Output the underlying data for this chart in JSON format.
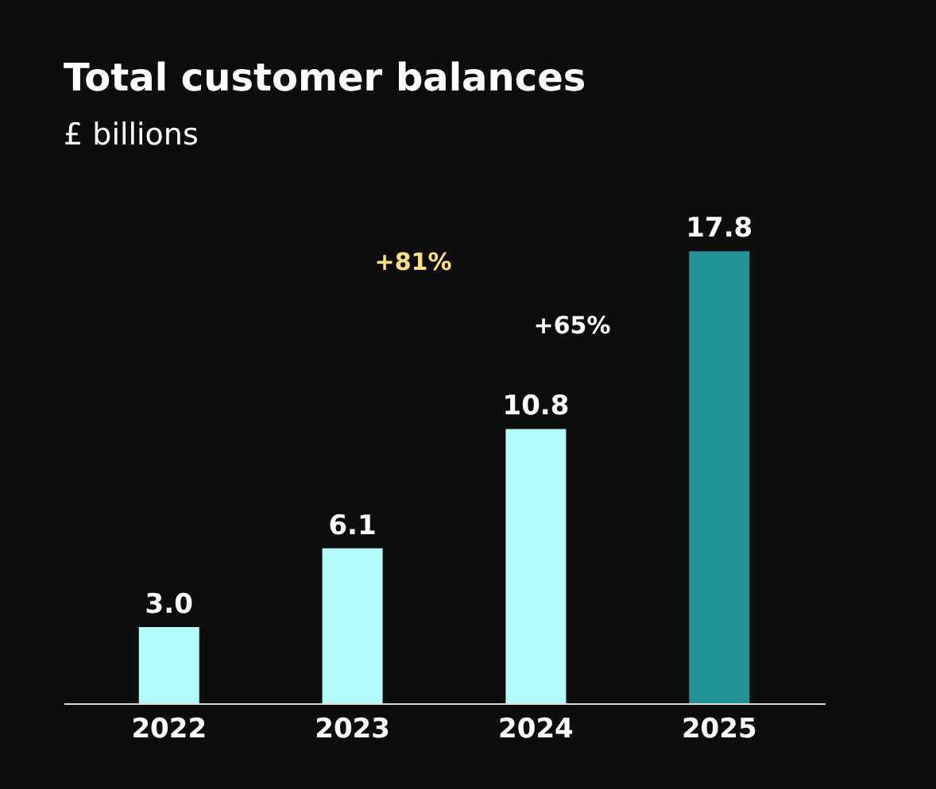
{
  "chart_data": {
    "type": "bar",
    "title": "Total customer balances",
    "subtitle": "£ billions",
    "categories": [
      "2022",
      "2023",
      "2024",
      "2025"
    ],
    "values": [
      3.0,
      6.1,
      10.8,
      17.8
    ],
    "colors": [
      "#b3fbfb",
      "#b3fbfb",
      "#b3fbfb",
      "#23939a"
    ],
    "value_labels": [
      "3.0",
      "6.1",
      "10.8",
      "17.8"
    ],
    "annotations": [
      "+81%",
      "+65%"
    ],
    "grid": false
  }
}
